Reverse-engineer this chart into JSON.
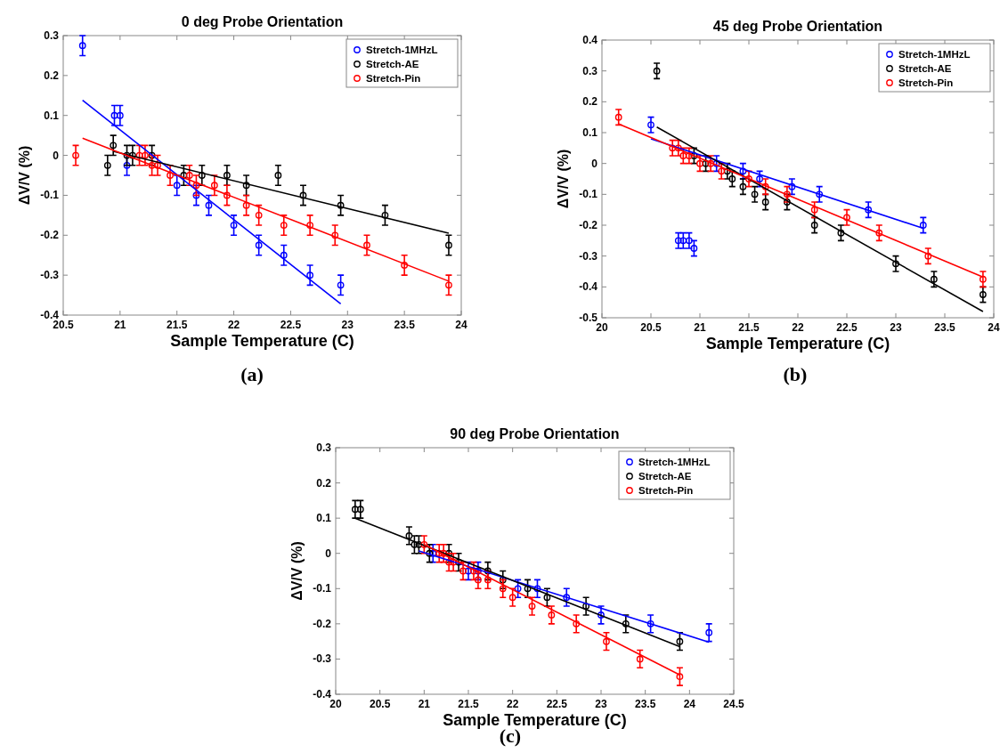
{
  "chart_data": [
    {
      "type": "scatter",
      "title": "0 deg Probe Orientation",
      "xlabel": "Sample Temperature (C)",
      "ylabel": "ΔV/V (%)",
      "annotations": [
        "(a)"
      ],
      "xlim": [
        20.5,
        24
      ],
      "xticks": [
        20.5,
        21,
        21.5,
        22,
        22.5,
        23,
        23.5,
        24
      ],
      "ylim": [
        -0.4,
        0.3
      ],
      "yticks": [
        -0.4,
        -0.3,
        -0.2,
        -0.1,
        0,
        0.1,
        0.2,
        0.3
      ],
      "grid": false,
      "legend": "top right",
      "marker": "circle",
      "series": [
        {
          "name": "Stretch-1MHzL",
          "color": "#0000ff",
          "x": [
            20.67,
            20.95,
            21.0,
            21.06,
            21.5,
            21.67,
            21.78,
            22.0,
            22.22,
            22.44,
            22.67,
            22.94
          ],
          "values": [
            0.275,
            0.1,
            0.1,
            -0.025,
            -0.075,
            -0.1,
            -0.125,
            -0.175,
            -0.225,
            -0.25,
            -0.3,
            -0.325
          ],
          "errors": [
            0.025,
            0.025,
            0.025,
            0.025,
            0.025,
            0.025,
            0.025,
            0.025,
            0.025,
            0.025,
            0.025,
            0.025
          ]
        },
        {
          "name": "Stretch-AE",
          "color": "#000000",
          "x": [
            20.89,
            20.94,
            21.06,
            21.11,
            21.28,
            21.56,
            21.72,
            21.94,
            22.11,
            22.39,
            22.61,
            22.94,
            23.33,
            23.89
          ],
          "values": [
            -0.025,
            0.025,
            0,
            0,
            0,
            -0.05,
            -0.05,
            -0.05,
            -0.075,
            -0.05,
            -0.1,
            -0.125,
            -0.15,
            -0.225
          ],
          "errors": [
            0.025,
            0.025,
            0.025,
            0.025,
            0.025,
            0.025,
            0.025,
            0.025,
            0.025,
            0.025,
            0.025,
            0.025,
            0.025,
            0.025
          ]
        },
        {
          "name": "Stretch-Pin",
          "color": "#ff0000",
          "x": [
            20.61,
            21.17,
            21.22,
            21.28,
            21.33,
            21.44,
            21.61,
            21.67,
            21.83,
            21.94,
            22.11,
            22.22,
            22.44,
            22.67,
            22.89,
            23.17,
            23.5,
            23.89
          ],
          "values": [
            0,
            0,
            0,
            -0.025,
            -0.025,
            -0.05,
            -0.05,
            -0.075,
            -0.075,
            -0.1,
            -0.125,
            -0.15,
            -0.175,
            -0.175,
            -0.2,
            -0.225,
            -0.275,
            -0.325
          ],
          "errors": [
            0.025,
            0.025,
            0.025,
            0.025,
            0.025,
            0.025,
            0.025,
            0.025,
            0.025,
            0.025,
            0.025,
            0.025,
            0.025,
            0.025,
            0.025,
            0.025,
            0.025,
            0.025
          ]
        },
        {
          "color": "#0000ff",
          "type": "line",
          "marker": "none",
          "x": [
            20.67,
            22.94
          ],
          "values": [
            0.138,
            -0.372
          ]
        },
        {
          "color": "#000000",
          "type": "line",
          "marker": "none",
          "x": [
            20.94,
            23.89
          ],
          "values": [
            0.01,
            -0.195
          ]
        },
        {
          "color": "#ff0000",
          "type": "line",
          "marker": "none",
          "x": [
            20.67,
            23.89
          ],
          "values": [
            0.043,
            -0.315
          ]
        }
      ]
    },
    {
      "type": "scatter",
      "title": "45 deg Probe Orientation",
      "xlabel": "Sample Temperature (C)",
      "ylabel": "ΔV/V (%)",
      "annotations": [
        "(b)"
      ],
      "xlim": [
        20,
        24
      ],
      "xticks": [
        20,
        20.5,
        21,
        21.5,
        22,
        22.5,
        23,
        23.5,
        24
      ],
      "ylim": [
        -0.5,
        0.4
      ],
      "yticks": [
        -0.5,
        -0.4,
        -0.3,
        -0.2,
        -0.1,
        0,
        0.1,
        0.2,
        0.3,
        0.4
      ],
      "grid": false,
      "legend": "top right",
      "marker": "circle",
      "series": [
        {
          "name": "Stretch-1MHzL",
          "color": "#0000ff",
          "x": [
            20.5,
            20.78,
            20.83,
            20.89,
            20.94,
            21.17,
            21.44,
            21.61,
            21.94,
            22.22,
            22.72,
            23.28
          ],
          "values": [
            0.125,
            -0.25,
            -0.25,
            -0.25,
            -0.275,
            0,
            -0.025,
            -0.05,
            -0.075,
            -0.1,
            -0.15,
            -0.2
          ],
          "errors": [
            0.025,
            0.025,
            0.025,
            0.025,
            0.025,
            0.025,
            0.025,
            0.025,
            0.025,
            0.025,
            0.025,
            0.025
          ]
        },
        {
          "name": "Stretch-AE",
          "color": "#000000",
          "x": [
            20.56,
            20.94,
            21.06,
            21.28,
            21.33,
            21.44,
            21.56,
            21.67,
            21.89,
            22.17,
            22.44,
            23.0,
            23.39,
            23.89
          ],
          "values": [
            0.3,
            0.025,
            0,
            -0.025,
            -0.05,
            -0.075,
            -0.1,
            -0.125,
            -0.125,
            -0.2,
            -0.225,
            -0.325,
            -0.375,
            -0.425
          ],
          "errors": [
            0.025,
            0.025,
            0.025,
            0.025,
            0.025,
            0.025,
            0.025,
            0.025,
            0.025,
            0.025,
            0.025,
            0.025,
            0.025,
            0.025
          ]
        },
        {
          "name": "Stretch-Pin",
          "color": "#ff0000",
          "x": [
            20.17,
            20.72,
            20.78,
            20.83,
            20.89,
            21.0,
            21.11,
            21.22,
            21.5,
            21.67,
            21.89,
            22.17,
            22.5,
            22.83,
            23.33,
            23.89
          ],
          "values": [
            0.15,
            0.05,
            0.05,
            0.025,
            0.025,
            0,
            0,
            -0.025,
            -0.05,
            -0.075,
            -0.1,
            -0.15,
            -0.175,
            -0.225,
            -0.3,
            -0.375
          ],
          "errors": [
            0.025,
            0.025,
            0.025,
            0.025,
            0.025,
            0.025,
            0.025,
            0.025,
            0.025,
            0.025,
            0.025,
            0.025,
            0.025,
            0.025,
            0.025,
            0.025
          ]
        },
        {
          "color": "#0000ff",
          "type": "line",
          "marker": "none",
          "x": [
            20.5,
            23.28
          ],
          "values": [
            0.08,
            -0.21
          ]
        },
        {
          "color": "#000000",
          "type": "line",
          "marker": "none",
          "x": [
            20.56,
            23.89
          ],
          "values": [
            0.118,
            -0.48
          ]
        },
        {
          "color": "#ff0000",
          "type": "line",
          "marker": "none",
          "x": [
            20.17,
            23.89
          ],
          "values": [
            0.128,
            -0.368
          ]
        }
      ]
    },
    {
      "type": "scatter",
      "title": "90 deg Probe Orientation",
      "xlabel": "Sample Temperature (C)",
      "ylabel": "ΔV/V (%)",
      "annotations": [
        "(c)"
      ],
      "xlim": [
        20,
        24.5
      ],
      "xticks": [
        20,
        20.5,
        21,
        21.5,
        22,
        22.5,
        23,
        23.5,
        24,
        24.5
      ],
      "ylim": [
        -0.4,
        0.3
      ],
      "yticks": [
        -0.4,
        -0.3,
        -0.2,
        -0.1,
        0,
        0.1,
        0.2,
        0.3
      ],
      "grid": false,
      "legend": "top right",
      "marker": "circle",
      "series": [
        {
          "name": "Stretch-1MHzL",
          "color": "#0000ff",
          "x": [
            21.1,
            21.5,
            21.61,
            22.06,
            22.28,
            22.61,
            23.0,
            23.56,
            24.22
          ],
          "values": [
            0,
            -0.05,
            -0.05,
            -0.1,
            -0.1,
            -0.125,
            -0.175,
            -0.2,
            -0.225
          ],
          "errors": [
            0.025,
            0.025,
            0.025,
            0.025,
            0.025,
            0.025,
            0.025,
            0.025,
            0.025
          ]
        },
        {
          "name": "Stretch-AE",
          "color": "#000000",
          "x": [
            20.22,
            20.28,
            20.83,
            20.89,
            20.94,
            21.06,
            21.28,
            21.39,
            21.72,
            21.89,
            22.17,
            22.39,
            22.83,
            23.28,
            23.89
          ],
          "values": [
            0.125,
            0.125,
            0.05,
            0.025,
            0.025,
            0,
            0,
            -0.025,
            -0.05,
            -0.075,
            -0.1,
            -0.125,
            -0.15,
            -0.2,
            -0.25
          ],
          "errors": [
            0.025,
            0.025,
            0.025,
            0.025,
            0.025,
            0.025,
            0.025,
            0.025,
            0.025,
            0.025,
            0.025,
            0.025,
            0.025,
            0.025,
            0.025
          ]
        },
        {
          "name": "Stretch-Pin",
          "color": "#ff0000",
          "x": [
            21.0,
            21.17,
            21.22,
            21.28,
            21.33,
            21.44,
            21.56,
            21.61,
            21.72,
            21.89,
            22.0,
            22.22,
            22.44,
            22.72,
            23.06,
            23.44,
            23.89
          ],
          "values": [
            0.025,
            0,
            0,
            -0.025,
            -0.025,
            -0.05,
            -0.05,
            -0.075,
            -0.075,
            -0.1,
            -0.125,
            -0.15,
            -0.175,
            -0.2,
            -0.25,
            -0.3,
            -0.35
          ],
          "errors": [
            0.025,
            0.025,
            0.025,
            0.025,
            0.025,
            0.025,
            0.025,
            0.025,
            0.025,
            0.025,
            0.025,
            0.025,
            0.025,
            0.025,
            0.025,
            0.025,
            0.025
          ]
        },
        {
          "color": "#0000ff",
          "type": "line",
          "marker": "none",
          "x": [
            20.94,
            24.22
          ],
          "values": [
            0.007,
            -0.252
          ]
        },
        {
          "color": "#000000",
          "type": "line",
          "marker": "none",
          "x": [
            20.22,
            23.89
          ],
          "values": [
            0.1,
            -0.265
          ]
        },
        {
          "color": "#ff0000",
          "type": "line",
          "marker": "none",
          "x": [
            21.0,
            23.89
          ],
          "values": [
            0.025,
            -0.345
          ]
        }
      ]
    }
  ]
}
